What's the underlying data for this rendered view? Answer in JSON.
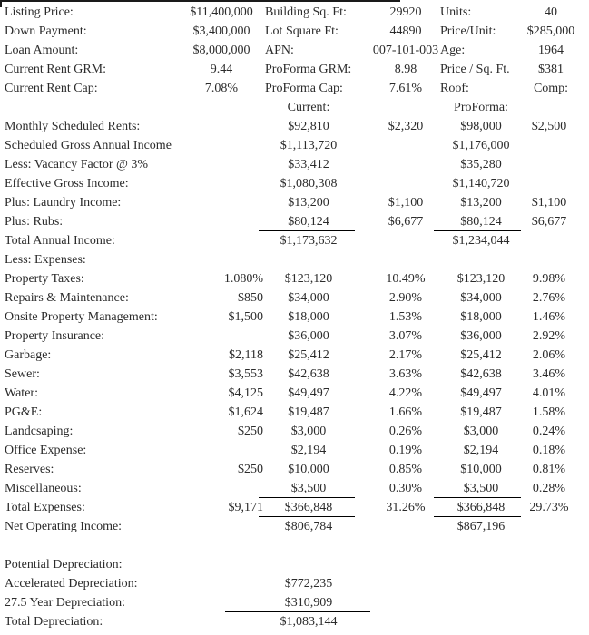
{
  "colors": {
    "background": "#ffffff",
    "text": "#2b2b2b",
    "rule": "#000000"
  },
  "header_rows": [
    {
      "l1": "Listing Price:",
      "v1": "$11,400,000",
      "l2": "Building Sq. Ft:",
      "v2": "29920",
      "l3": "Units:",
      "v3": "40"
    },
    {
      "l1": "Down Payment:",
      "v1": "$3,400,000",
      "l2": "Lot Square Ft:",
      "v2": "44890",
      "l3": "Price/Unit:",
      "v3": "$285,000"
    },
    {
      "l1": "Loan Amount:",
      "v1": "$8,000,000",
      "l2": "APN:",
      "v2": "007-101-003",
      "l3": "Age:",
      "v3": "1964"
    },
    {
      "l1": "Current Rent GRM:",
      "v1": "9.44",
      "l2": "ProForma GRM:",
      "v2": "8.98",
      "l3": "Price / Sq. Ft.",
      "v3": "$381"
    },
    {
      "l1": "Current Rent Cap:",
      "v1": "7.08%",
      "l2": "ProForma Cap:",
      "v2": "7.61%",
      "l3": "Roof:",
      "v3": "Comp:"
    }
  ],
  "column_headers": {
    "current": "Current:",
    "proforma": "ProForma:"
  },
  "statement_rows": [
    {
      "label": "Monthly Scheduled Rents:",
      "c": "$92,810",
      "d": "$2,320",
      "e": "$98,000",
      "f": "$2,500"
    },
    {
      "label": "Scheduled Gross Annual Income",
      "c": "$1,113,720",
      "e": "$1,176,000"
    },
    {
      "label": "Less: Vacancy Factor @ 3%",
      "c": "$33,412",
      "e": "$35,280"
    },
    {
      "label": "Effective Gross Income:",
      "c": "$1,080,308",
      "e": "$1,140,720"
    },
    {
      "label": "Plus: Laundry Income:",
      "c": "$13,200",
      "d": "$1,100",
      "e": "$13,200",
      "f": "$1,100"
    },
    {
      "label": "Plus: Rubs:",
      "c": "$80,124",
      "d": "$6,677",
      "e": "$80,124",
      "f": "$6,677",
      "rules": [
        "c",
        "e"
      ]
    },
    {
      "label": "Total Annual Income:",
      "c": "$1,173,632",
      "e": "$1,234,044"
    },
    {
      "label": "Less: Expenses:"
    },
    {
      "label": "Property Taxes:",
      "b": "1.080%",
      "c": "$123,120",
      "d": "10.49%",
      "e": "$123,120",
      "f": "9.98%"
    },
    {
      "label": "Repairs & Maintenance:",
      "b": "$850",
      "c": "$34,000",
      "d": "2.90%",
      "e": "$34,000",
      "f": "2.76%"
    },
    {
      "label": "Onsite Property Management:",
      "b": "$1,500",
      "c": "$18,000",
      "d": "1.53%",
      "e": "$18,000",
      "f": "1.46%"
    },
    {
      "label": "Property Insurance:",
      "c": "$36,000",
      "d": "3.07%",
      "e": "$36,000",
      "f": "2.92%"
    },
    {
      "label": "Garbage:",
      "b": "$2,118",
      "c": "$25,412",
      "d": "2.17%",
      "e": "$25,412",
      "f": "2.06%"
    },
    {
      "label": "Sewer:",
      "b": "$3,553",
      "c": "$42,638",
      "d": "3.63%",
      "e": "$42,638",
      "f": "3.46%"
    },
    {
      "label": "Water:",
      "b": "$4,125",
      "c": "$49,497",
      "d": "4.22%",
      "e": "$49,497",
      "f": "4.01%"
    },
    {
      "label": "PG&E:",
      "b": "$1,624",
      "c": "$19,487",
      "d": "1.66%",
      "e": "$19,487",
      "f": "1.58%"
    },
    {
      "label": "Landcsaping:",
      "b": "$250",
      "c": "$3,000",
      "d": "0.26%",
      "e": "$3,000",
      "f": "0.24%"
    },
    {
      "label": "Office Expense:",
      "c": "$2,194",
      "d": "0.19%",
      "e": "$2,194",
      "f": "0.18%"
    },
    {
      "label": "Reserves:",
      "b": "$250",
      "c": "$10,000",
      "d": "0.85%",
      "e": "$10,000",
      "f": "0.81%"
    },
    {
      "label": "Miscellaneous:",
      "c": "$3,500",
      "d": "0.30%",
      "e": "$3,500",
      "f": "0.28%",
      "rules": [
        "c",
        "e"
      ]
    },
    {
      "label": "Total Expenses:",
      "b": "$9,171",
      "c": "$366,848",
      "d": "31.26%",
      "e": "$366,848",
      "f": "29.73%",
      "rules": [
        "c",
        "e"
      ]
    },
    {
      "label": "Net Operating Income:",
      "c": "$806,784",
      "e": "$867,196"
    },
    {
      "label": ""
    },
    {
      "label": "Potential Depreciation:"
    },
    {
      "label": "Accelerated Depreciation:",
      "c": "$772,235"
    },
    {
      "label": "27.5 Year Depreciation:",
      "c": "$310,909",
      "rules": [
        "thick"
      ]
    },
    {
      "label": "Total Depreciation:",
      "c": "$1,083,144"
    }
  ]
}
